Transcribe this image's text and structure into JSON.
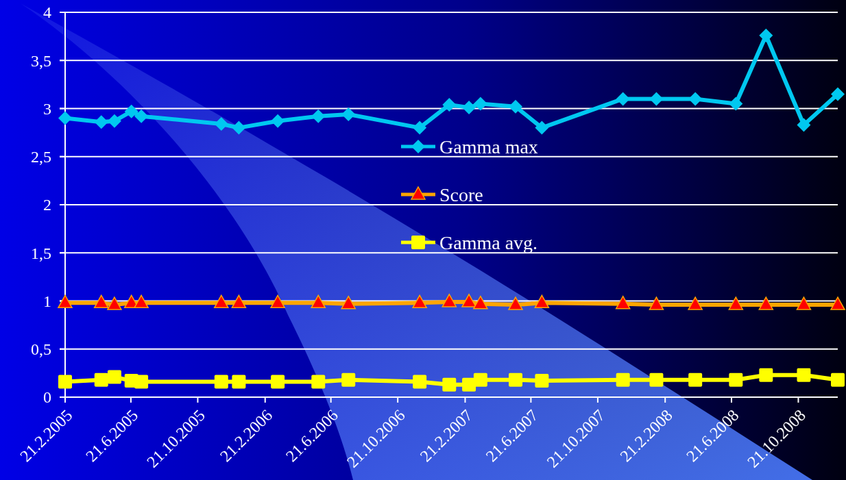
{
  "chart_data": {
    "type": "line",
    "x": [
      "2005-02-21",
      "2005-04-28",
      "2005-05-22",
      "2005-06-22",
      "2005-07-10",
      "2005-12-03",
      "2006-01-04",
      "2006-03-16",
      "2006-05-29",
      "2006-07-23",
      "2006-11-30",
      "2007-01-23",
      "2007-02-28",
      "2007-03-21",
      "2007-05-24",
      "2007-07-11",
      "2007-12-06",
      "2008-02-05",
      "2008-04-16",
      "2008-06-29",
      "2008-08-23",
      "2008-10-31",
      "2009-01-01"
    ],
    "series": [
      {
        "name": "Gamma max",
        "color": "#00c8f0",
        "marker": "diamond",
        "values": [
          2.9,
          2.86,
          2.87,
          2.97,
          2.92,
          2.84,
          2.8,
          2.87,
          2.92,
          2.94,
          2.8,
          3.04,
          3.01,
          3.05,
          3.02,
          2.8,
          3.1,
          3.1,
          3.1,
          3.05,
          3.76,
          2.83,
          3.15
        ]
      },
      {
        "name": "Score",
        "color": "#ffa500",
        "marker": "triangle",
        "values": [
          0.98,
          0.98,
          0.96,
          0.98,
          0.98,
          0.98,
          0.98,
          0.98,
          0.98,
          0.97,
          0.98,
          0.99,
          0.99,
          0.97,
          0.96,
          0.98,
          0.97,
          0.96,
          0.96,
          0.96,
          0.96,
          0.96,
          0.96
        ]
      },
      {
        "name": "Gamma avg.",
        "color": "#ffff00",
        "marker": "square",
        "values": [
          0.16,
          0.18,
          0.21,
          0.17,
          0.16,
          0.16,
          0.16,
          0.16,
          0.16,
          0.18,
          0.16,
          0.13,
          0.13,
          0.18,
          0.18,
          0.17,
          0.18,
          0.18,
          0.18,
          0.18,
          0.23,
          0.23,
          0.18
        ]
      }
    ],
    "xlim": [
      "2005-02-21",
      "2009-01-01"
    ],
    "xticks": [
      {
        "value": "2005-02-21",
        "label": "21.2.2005"
      },
      {
        "value": "2005-06-21",
        "label": "21.6.2005"
      },
      {
        "value": "2005-10-21",
        "label": "21.10.2005"
      },
      {
        "value": "2006-02-21",
        "label": "21.2.2006"
      },
      {
        "value": "2006-06-21",
        "label": "21.6.2006"
      },
      {
        "value": "2006-10-21",
        "label": "21.10.2006"
      },
      {
        "value": "2007-02-21",
        "label": "21.2.2007"
      },
      {
        "value": "2007-06-21",
        "label": "21.6.2007"
      },
      {
        "value": "2007-10-21",
        "label": "21.10.2007"
      },
      {
        "value": "2008-02-21",
        "label": "21.2.2008"
      },
      {
        "value": "2008-06-21",
        "label": "21.6.2008"
      },
      {
        "value": "2008-10-21",
        "label": "21.10.2008"
      }
    ],
    "ylim": [
      0,
      4
    ],
    "yticks": [
      0,
      {
        "value": 0.5,
        "label": "0,5"
      },
      1,
      {
        "value": 1.5,
        "label": "1,5"
      },
      2,
      {
        "value": 2.5,
        "label": "2,5"
      },
      3,
      {
        "value": 3.5,
        "label": "3,5"
      },
      4
    ],
    "grid": "y",
    "legend": "center",
    "line_style": "solid"
  }
}
